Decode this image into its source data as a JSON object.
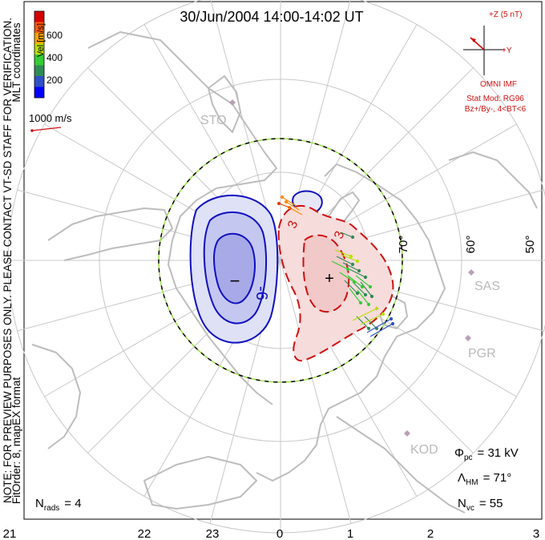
{
  "title": "30/Jun/2004 14:00-14:02 UT",
  "side_note_1": "NOTE: FOR PREVIEW PURPOSES ONLY. PLEASE CONTACT VT-SD STAFF FOR VERIFICATION.",
  "side_note_2": "FitOrder: 8, mapEX format",
  "coordinates_label": "MLT coordinates",
  "colorbar": {
    "label": "Vel [m/s]",
    "ticks": [
      "600",
      "400",
      "200"
    ],
    "colors": [
      "#d40000",
      "#ff5a00",
      "#ffa500",
      "#b8e000",
      "#33cc33",
      "#2e8b57",
      "#3050c8",
      "#0000ff"
    ]
  },
  "vector_scale": "1000 m/s",
  "imf": {
    "axis_z": "+Z (5 nT)",
    "axis_y": "+Y",
    "source": "OMNI IMF",
    "model": "Stat Mod: RG96",
    "condition": "Bz+/By-, 4<BT<6"
  },
  "latitude_labels": [
    "70°",
    "60°",
    "50°"
  ],
  "stations": [
    "STO",
    "SAS",
    "PGR",
    "KOD"
  ],
  "contours": {
    "min_sign": "−",
    "max_sign": "+",
    "neg_label": "-6",
    "pos_labels": [
      "3",
      "3"
    ]
  },
  "stats": {
    "phi_symbol": "Φ",
    "phi_sub": "pc",
    "phi_value": "= 31 kV",
    "lambda_symbol": "Λ",
    "lambda_sub": "HM",
    "lambda_value": "= 71°",
    "nvc_symbol": "N",
    "nvc_sub": "vc",
    "nvc_value": "= 55",
    "nrads_symbol": "N",
    "nrads_sub": "rads",
    "nrads_value": "= 4"
  },
  "mlt_ticks": [
    "21",
    "22",
    "23",
    "0",
    "1",
    "2",
    "3"
  ],
  "colors": {
    "negative": "#1010c0",
    "positive": "#d01010",
    "grid": "#c8c8c8",
    "coast": "#bdbdbd",
    "imf": "#d01010"
  }
}
